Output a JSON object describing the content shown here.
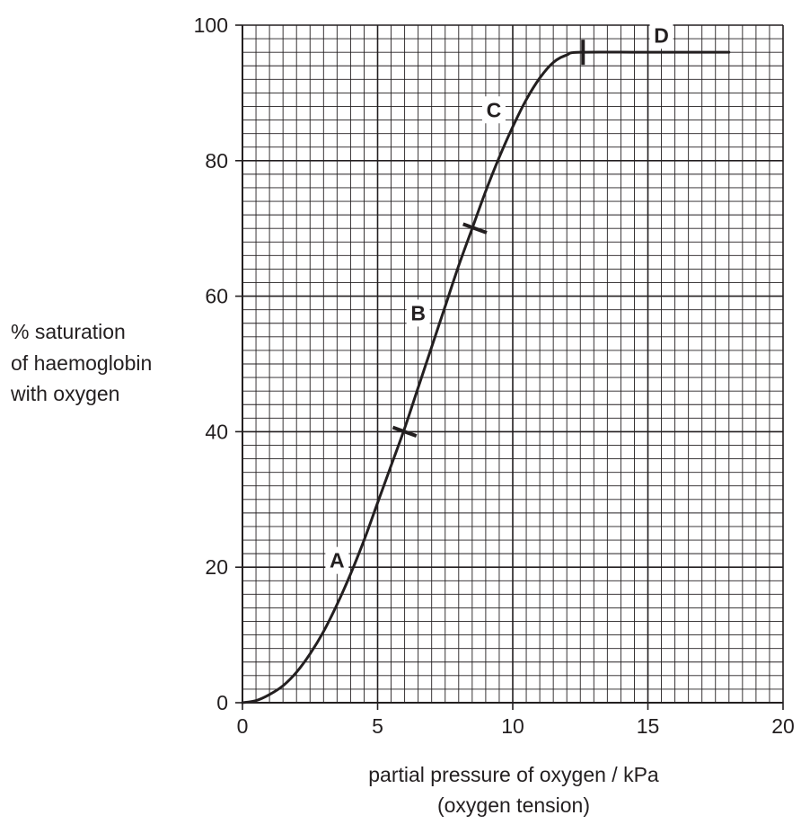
{
  "chart_data": {
    "type": "line",
    "title": "",
    "xlabel": "partial pressure of oxygen / kPa",
    "xlabel_line2": "(oxygen tension)",
    "ylabel_lines": [
      "% saturation",
      "of haemoglobin",
      "with oxygen"
    ],
    "xlim": [
      0,
      20
    ],
    "ylim": [
      0,
      100
    ],
    "x_ticks": [
      0,
      5,
      10,
      15,
      20
    ],
    "y_ticks": [
      0,
      20,
      40,
      60,
      80,
      100
    ],
    "grid": true,
    "grid_minor_step_x": 0.5,
    "grid_minor_step_y": 2,
    "series": [
      {
        "values": [
          [
            0,
            0
          ],
          [
            0.5,
            0.3
          ],
          [
            1,
            1.2
          ],
          [
            1.5,
            2.5
          ],
          [
            2,
            4.5
          ],
          [
            2.5,
            7.2
          ],
          [
            3,
            10.5
          ],
          [
            3.5,
            14.5
          ],
          [
            4,
            19
          ],
          [
            4.5,
            24
          ],
          [
            5,
            29.5
          ],
          [
            5.5,
            35
          ],
          [
            6,
            40.5
          ],
          [
            6.5,
            46.5
          ],
          [
            7,
            52.5
          ],
          [
            7.5,
            58.5
          ],
          [
            8,
            64.5
          ],
          [
            8.5,
            70
          ],
          [
            9,
            75.5
          ],
          [
            9.5,
            80.5
          ],
          [
            10,
            85
          ],
          [
            10.5,
            89
          ],
          [
            11,
            92.2
          ],
          [
            11.5,
            94.5
          ],
          [
            12,
            95.6
          ],
          [
            12.5,
            96
          ],
          [
            15,
            96
          ],
          [
            18,
            96
          ]
        ]
      }
    ],
    "segment_markers": [
      {
        "x": 6,
        "y": 40
      },
      {
        "x": 8.6,
        "y": 70
      },
      {
        "x": 12.6,
        "y": 96
      }
    ],
    "annotations": [
      {
        "text": "A",
        "x": 3.5,
        "y": 21
      },
      {
        "text": "B",
        "x": 6.5,
        "y": 57.5
      },
      {
        "text": "C",
        "x": 9.3,
        "y": 87.5
      },
      {
        "text": "D",
        "x": 15.5,
        "y": 98.5
      }
    ]
  }
}
